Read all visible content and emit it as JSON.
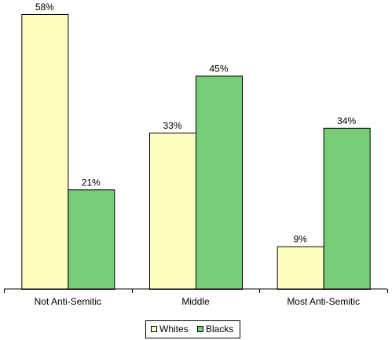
{
  "chart_data": {
    "type": "bar",
    "categories": [
      "Not Anti-Semitic",
      "Middle",
      "Most Anti-Semitic"
    ],
    "series": [
      {
        "name": "Whites",
        "values": [
          58,
          33,
          9
        ],
        "labels": [
          "58%",
          "33%",
          "9%"
        ],
        "color": "#ffffc0"
      },
      {
        "name": "Blacks",
        "values": [
          21,
          45,
          34
        ],
        "labels": [
          "21%",
          "45%",
          "34%"
        ],
        "color": "#77cc77"
      }
    ],
    "ylim": [
      0,
      58
    ],
    "value_suffix": "%",
    "legend_position": "bottom",
    "grid": false
  }
}
